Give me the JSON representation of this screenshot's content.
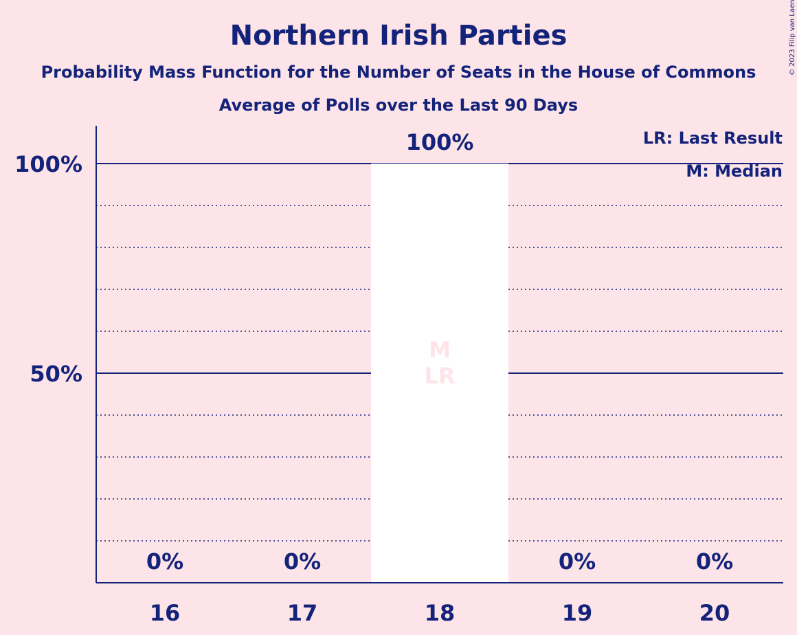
{
  "chart_data": {
    "type": "bar",
    "title": "Northern Irish Parties",
    "subtitle": "Probability Mass Function for the Number of Seats in the House of Commons",
    "subtitle2": "Average of Polls over the Last 90 Days",
    "categories": [
      "16",
      "17",
      "18",
      "19",
      "20"
    ],
    "values": [
      0,
      0,
      100,
      0,
      0
    ],
    "value_labels": [
      "0%",
      "0%",
      "100%",
      "0%",
      "0%"
    ],
    "ylim": [
      0,
      110
    ],
    "yticks": [
      {
        "value": 50,
        "label": "50%"
      },
      {
        "value": 100,
        "label": "100%"
      }
    ],
    "minor_gridlines": [
      10,
      20,
      30,
      40,
      60,
      70,
      80,
      90
    ],
    "bar_markers": {
      "18": [
        "M",
        "LR"
      ]
    },
    "legend": [
      "LR: Last Result",
      "M: Median"
    ],
    "legend_position": "top-right",
    "bar_color": "#ffffff",
    "axis_color": "#14237a",
    "background": "#fde4e8"
  },
  "copyright": "© 2023 Filip van Laenen"
}
